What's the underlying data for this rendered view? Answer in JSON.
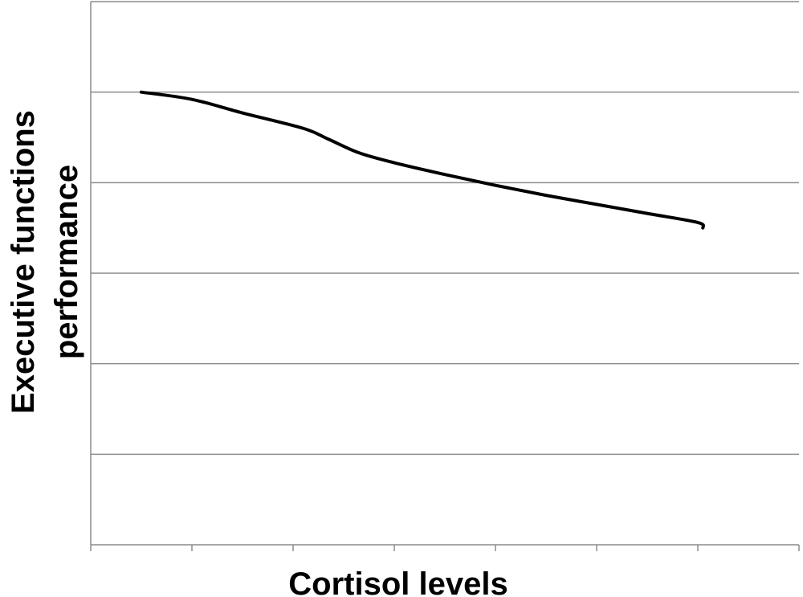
{
  "chart_data": {
    "type": "line",
    "title": "",
    "xlabel": "Cortisol levels",
    "ylabel_lines": [
      "Executive functions",
      "performance"
    ],
    "x_categories": 7,
    "ylim": [
      0,
      6
    ],
    "grid": true,
    "tick_labels_shown": false,
    "series": [
      {
        "line_color": "#000000",
        "points": [
          {
            "x": 0.5,
            "y": 5.0
          },
          {
            "x": 1.0,
            "y": 4.92
          },
          {
            "x": 1.5,
            "y": 4.77
          },
          {
            "x": 2.1,
            "y": 4.6
          },
          {
            "x": 2.35,
            "y": 4.48
          },
          {
            "x": 2.65,
            "y": 4.33
          },
          {
            "x": 3.0,
            "y": 4.22
          },
          {
            "x": 3.5,
            "y": 4.09
          },
          {
            "x": 4.0,
            "y": 3.97
          },
          {
            "x": 4.5,
            "y": 3.86
          },
          {
            "x": 5.0,
            "y": 3.76
          },
          {
            "x": 5.5,
            "y": 3.66
          },
          {
            "x": 6.0,
            "y": 3.56
          },
          {
            "x": 6.05,
            "y": 3.5
          }
        ]
      }
    ],
    "colors": {
      "gridline": "#8c8c8c",
      "axis": "#8c8c8c",
      "line": "#000000",
      "text": "#000000"
    }
  }
}
